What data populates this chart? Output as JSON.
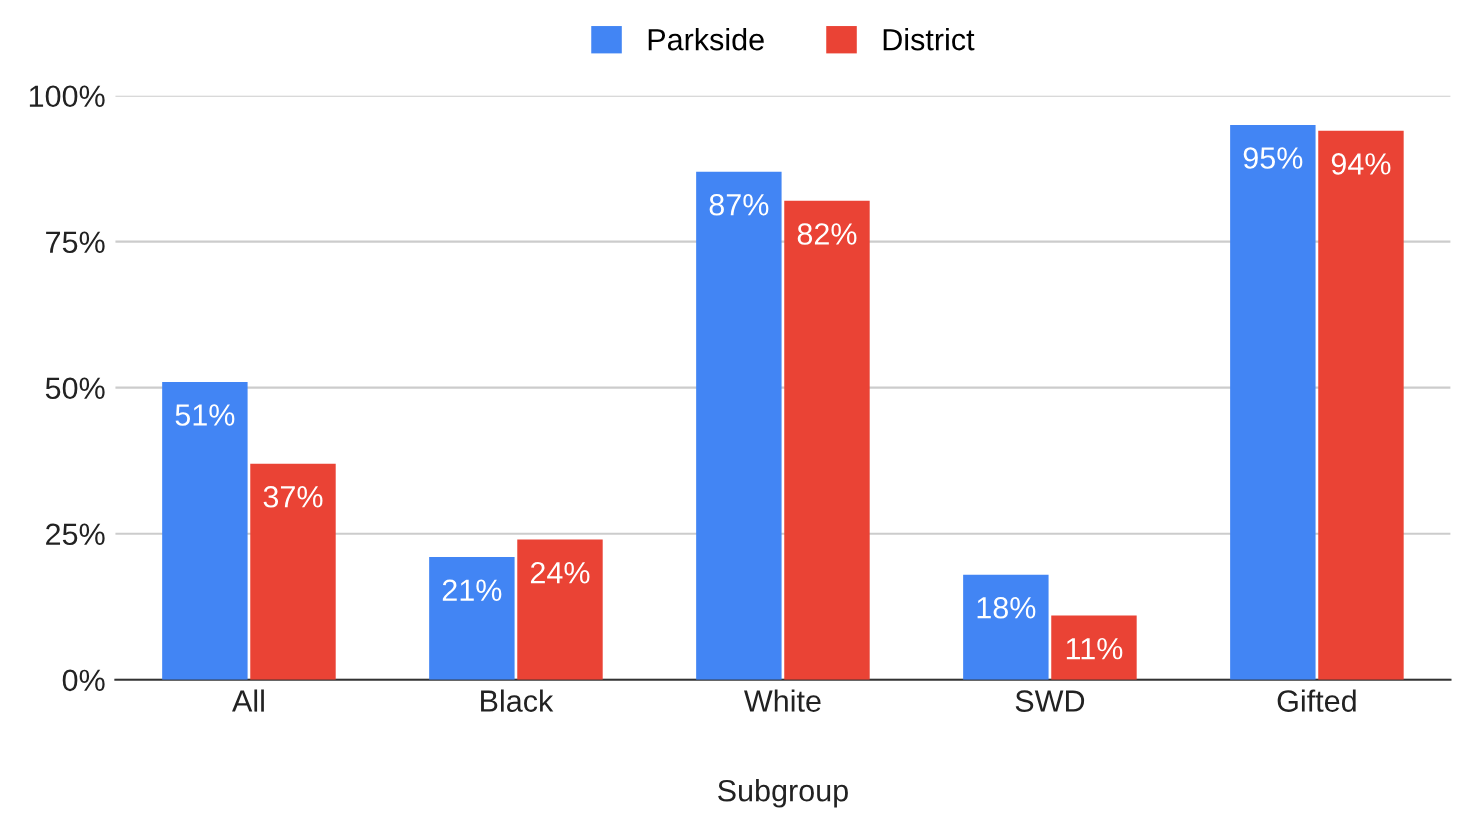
{
  "chart_data": {
    "type": "bar",
    "xlabel": "Subgroup",
    "categories": [
      "All",
      "Black",
      "White",
      "SWD",
      "Gifted"
    ],
    "series": [
      {
        "name": "Parkside",
        "color": "#4285f4",
        "values": [
          51,
          21,
          87,
          18,
          95
        ],
        "value_labels": [
          "51%",
          "21%",
          "87%",
          "18%",
          "95%"
        ]
      },
      {
        "name": "District",
        "color": "#ea4335",
        "values": [
          37,
          24,
          82,
          11,
          94
        ],
        "value_labels": [
          "37%",
          "24%",
          "82%",
          "11%",
          "94%"
        ]
      }
    ],
    "ylim": [
      0,
      100
    ],
    "yticks": [
      {
        "value": 0,
        "label": "0%"
      },
      {
        "value": 25,
        "label": "25%"
      },
      {
        "value": 50,
        "label": "50%"
      },
      {
        "value": 75,
        "label": "75%"
      },
      {
        "value": 100,
        "label": "100%"
      }
    ],
    "grid": "y",
    "legend": "top"
  }
}
